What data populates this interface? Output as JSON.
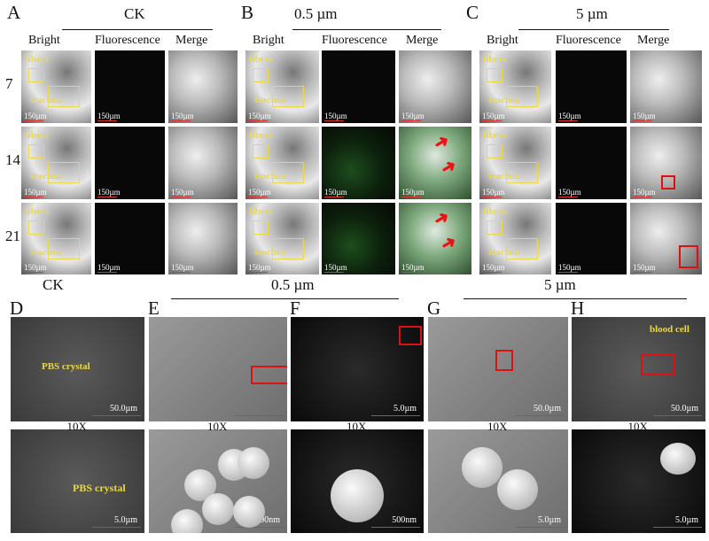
{
  "top": {
    "letters": [
      "A",
      "B",
      "C"
    ],
    "groups": [
      "CK",
      "0.5 µm",
      "5 µm"
    ],
    "columns": [
      "Bright",
      "Fluorescence",
      "Merge"
    ],
    "rows": [
      "7",
      "14",
      "21"
    ],
    "scale": "150µm",
    "annotations": {
      "fibers": "fibers",
      "trachea": "trachea"
    }
  },
  "bottom": {
    "letters": [
      "D",
      "E",
      "F",
      "G",
      "H"
    ],
    "groups": [
      "CK",
      "0.5 µm",
      "5 µm"
    ],
    "magnification": "10X",
    "scales_top": [
      "50.0µm",
      "",
      "5.0µm",
      "50.0µm",
      "50.0µm"
    ],
    "scales_bottom": [
      "5.0µm",
      "500nm",
      "500nm",
      "5.0µm",
      "5.0µm"
    ],
    "annotations": {
      "pbs": "PBS crystal",
      "blood": "blood cell"
    }
  },
  "colors": {
    "annotation": "#e8d84a",
    "highlight": "#d11111",
    "fluorescence": "#2f8a2f"
  }
}
